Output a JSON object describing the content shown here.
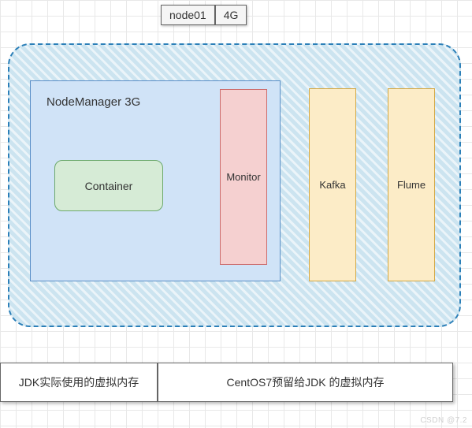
{
  "top": {
    "node_label": "node01",
    "mem_label": "4G"
  },
  "main": {
    "bg_color": "#cce4f0",
    "border_color": "#2b7fb8",
    "node_manager": {
      "label": "NodeManager 3G",
      "bg_color": "#d0e3f7",
      "border_color": "#5a8fc7",
      "container": {
        "label": "Container",
        "bg_color": "#d6ebd6",
        "border_color": "#6ca96c"
      },
      "monitor": {
        "label": "Monitor",
        "bg_color": "#f5d0d0",
        "border_color": "#cc6b6b"
      }
    },
    "kafka": {
      "label": "Kafka",
      "bg_color": "#fcecc7",
      "border_color": "#d4a843"
    },
    "flume": {
      "label": "Flume",
      "bg_color": "#fcecc7",
      "border_color": "#d4a843"
    }
  },
  "bottom": {
    "left": "JDK实际使用的虚拟内存",
    "right": "CentOS7预留给JDK 的虚拟内存"
  },
  "watermark": "CSDN @7.2"
}
